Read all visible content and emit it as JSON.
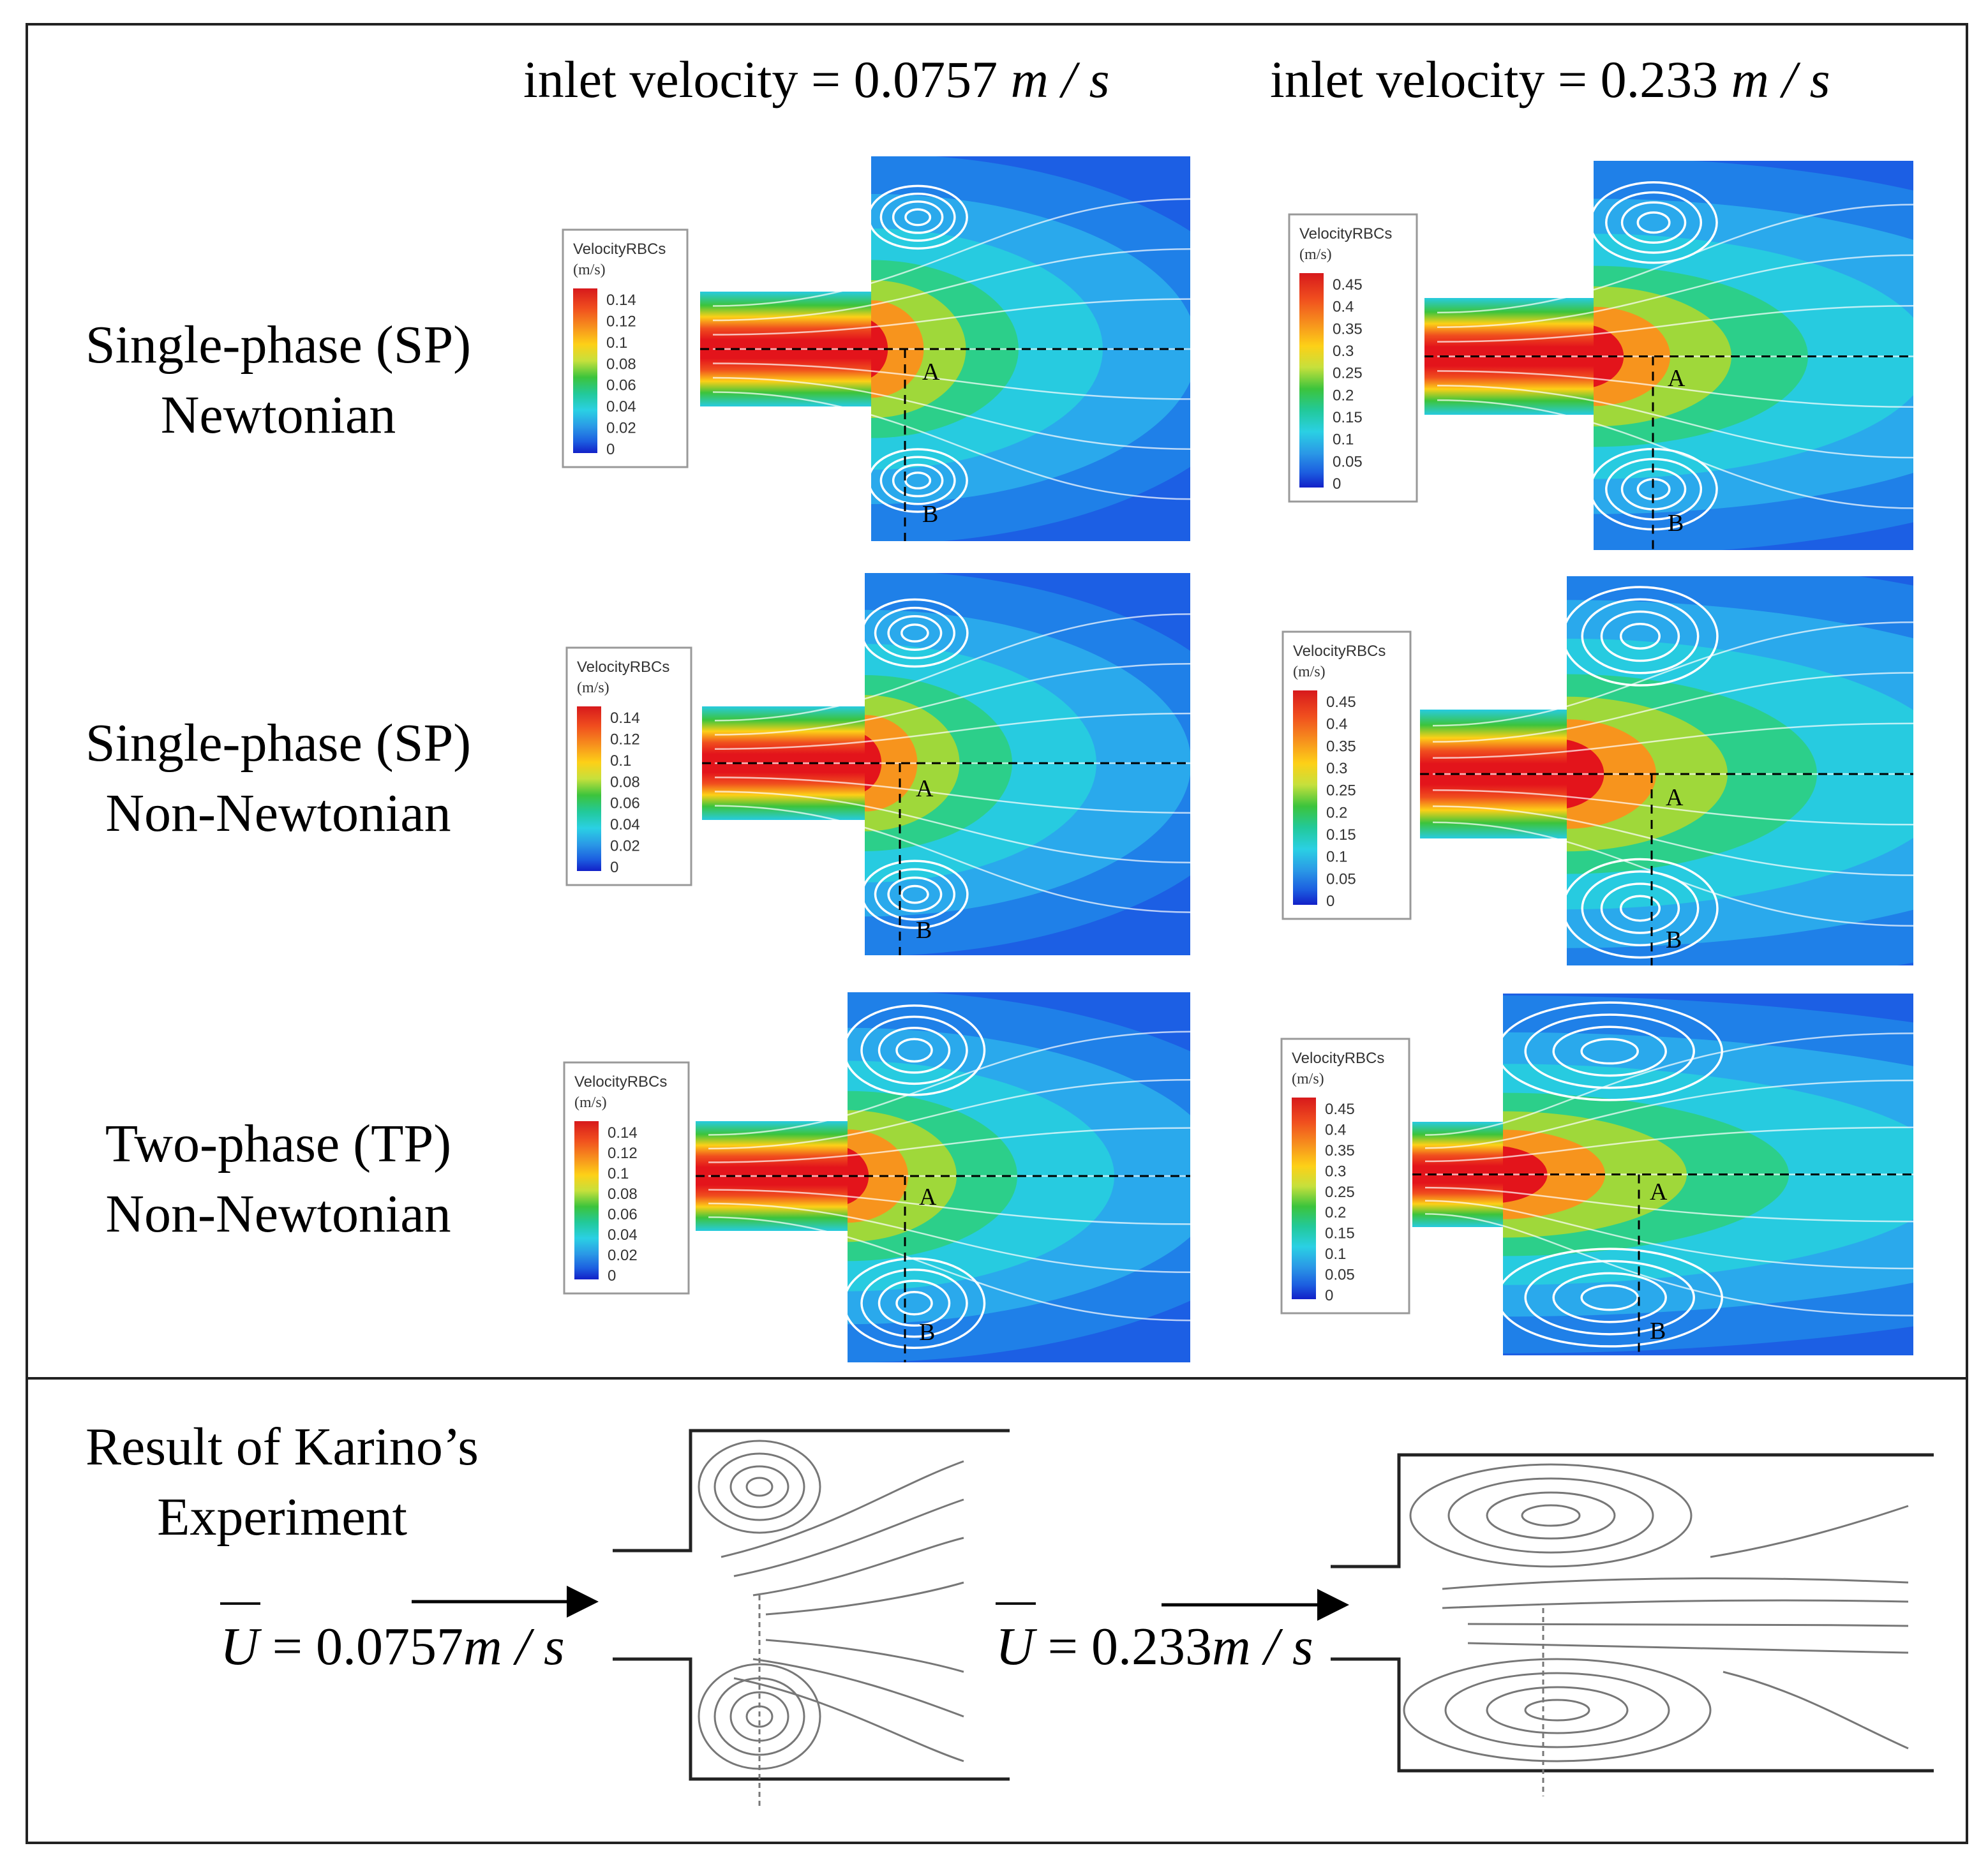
{
  "header": {
    "col1": {
      "prefix": "inlet velocity = 0.0757 ",
      "unit": "m / s"
    },
    "col2": {
      "prefix": "inlet velocity = 0.233 ",
      "unit": "m / s"
    }
  },
  "rows": [
    {
      "line1": "Single-phase (SP)",
      "line2": "Newtonian"
    },
    {
      "line1": "Single-phase (SP)",
      "line2": "Non-Newtonian"
    },
    {
      "line1": "Two-phase (TP)",
      "line2": "Non-Newtonian"
    }
  ],
  "legend": {
    "title": "VelocityRBCs",
    "units": "(m/s)",
    "low_ticks": [
      "0.14",
      "0.12",
      "0.1",
      "0.08",
      "0.06",
      "0.04",
      "0.02",
      "0"
    ],
    "high_ticks": [
      "0.45",
      "0.4",
      "0.35",
      "0.3",
      "0.25",
      "0.2",
      "0.15",
      "0.1",
      "0.05",
      "0"
    ],
    "colors": [
      "#d7191c",
      "#f04e1e",
      "#f7941d",
      "#fdd017",
      "#c6e03c",
      "#3cc43c",
      "#22c99a",
      "#2ad0e4",
      "#2a98e6",
      "#1c5ee0",
      "#1220c8"
    ]
  },
  "points": {
    "a": "A",
    "b": "B"
  },
  "bottom": {
    "label_line1": "Result of Karino’s",
    "label_line2": "Experiment",
    "exp1": {
      "u": "U",
      "rest": " = 0.0757",
      "unit": "m / s"
    },
    "exp2": {
      "u": "U",
      "rest": " = 0.233",
      "unit": "m / s"
    }
  },
  "colors": {
    "cavity_blue": "#1c5fe4",
    "core_red": "#e3141b"
  }
}
